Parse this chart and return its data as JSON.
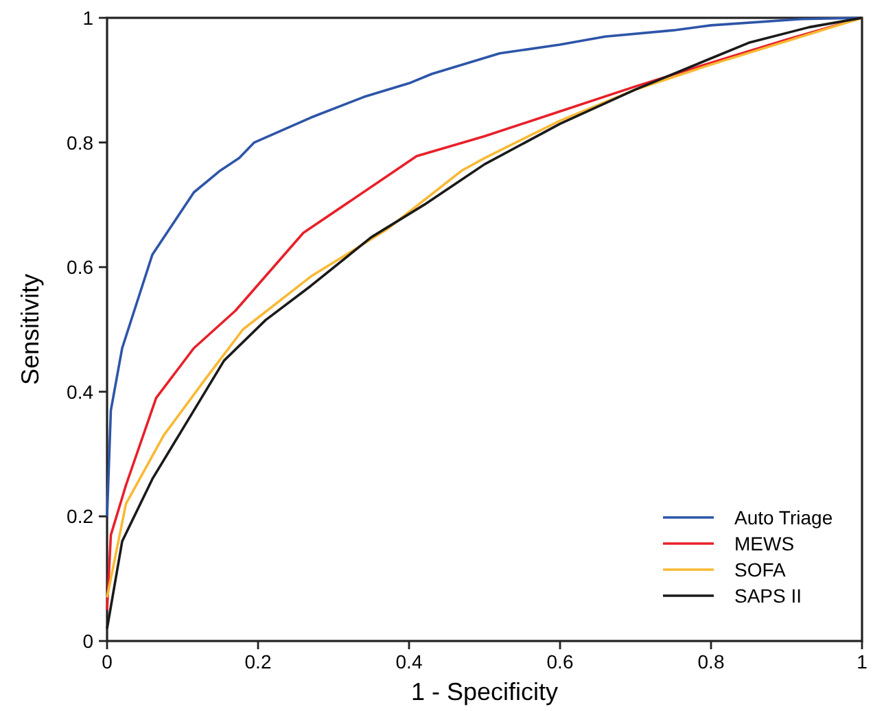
{
  "chart_data": {
    "type": "line",
    "xlabel": "1 - Specificity",
    "ylabel": "Sensitivity",
    "xlim": [
      0,
      1
    ],
    "ylim": [
      0,
      1
    ],
    "xticks": [
      0,
      0.2,
      0.4,
      0.6,
      0.8,
      1
    ],
    "yticks": [
      0,
      0.2,
      0.4,
      0.6,
      0.8,
      1
    ],
    "grid": false,
    "legend": "bottom right",
    "marker": "none",
    "line_style": "solid",
    "series": [
      {
        "name": "Auto Triage",
        "color": "#2d55a8",
        "x": [
          0,
          0.005,
          0.02,
          0.06,
          0.115,
          0.15,
          0.175,
          0.195,
          0.27,
          0.34,
          0.4,
          0.43,
          0.52,
          0.6,
          0.66,
          0.75,
          0.8,
          0.92,
          1
        ],
        "values": [
          0.2,
          0.37,
          0.47,
          0.62,
          0.72,
          0.755,
          0.775,
          0.8,
          0.84,
          0.873,
          0.895,
          0.91,
          0.943,
          0.957,
          0.97,
          0.98,
          0.988,
          0.998,
          1
        ]
      },
      {
        "name": "MEWS",
        "color": "#e8202a",
        "x": [
          0,
          0.005,
          0.025,
          0.065,
          0.115,
          0.17,
          0.26,
          0.41,
          0.5,
          0.6,
          0.7,
          0.8,
          0.9,
          1
        ],
        "values": [
          0.05,
          0.17,
          0.25,
          0.39,
          0.47,
          0.53,
          0.655,
          0.778,
          0.81,
          0.85,
          0.89,
          0.928,
          0.965,
          1
        ]
      },
      {
        "name": "SOFA",
        "color": "#f9b934",
        "x": [
          0,
          0.025,
          0.075,
          0.13,
          0.18,
          0.27,
          0.37,
          0.47,
          0.5,
          0.6,
          0.7,
          0.8,
          1
        ],
        "values": [
          0.07,
          0.22,
          0.33,
          0.42,
          0.5,
          0.585,
          0.66,
          0.755,
          0.775,
          0.835,
          0.885,
          0.925,
          1
        ]
      },
      {
        "name": "SAPS II",
        "color": "#1a1a1a",
        "x": [
          0,
          0.02,
          0.06,
          0.095,
          0.155,
          0.21,
          0.27,
          0.35,
          0.42,
          0.5,
          0.6,
          0.7,
          0.8,
          0.85,
          0.93,
          1
        ],
        "values": [
          0.02,
          0.16,
          0.26,
          0.33,
          0.45,
          0.515,
          0.57,
          0.648,
          0.7,
          0.765,
          0.83,
          0.885,
          0.935,
          0.96,
          0.985,
          1
        ]
      }
    ]
  }
}
